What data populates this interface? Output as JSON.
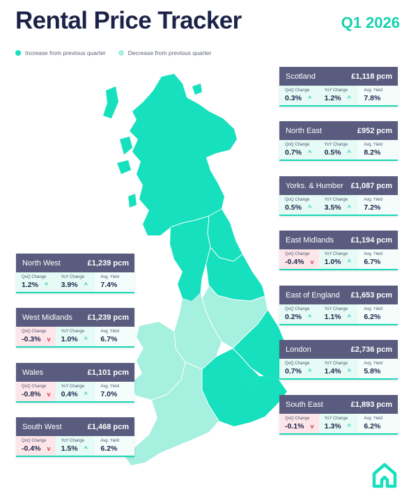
{
  "header": {
    "title": "Rental Price Tracker",
    "period": "Q1 2026"
  },
  "legend": {
    "increase": "Increase from previous quarter",
    "decrease": "Decrease from previous quarter"
  },
  "colors": {
    "increase": "#16e0bd",
    "decrease": "#a6f0e0",
    "title": "#1c2348",
    "card_header": "#595c7e",
    "down_arrow": "#e0394e"
  },
  "labels": {
    "qoq": "QoQ Change",
    "yoy": "YoY Change",
    "yield": "Avg. Yield"
  },
  "regions": {
    "scotland": {
      "name": "Scotland",
      "price": "£1,118 pcm",
      "qoq": "0.3%",
      "yoy": "1.2%",
      "yield": "7.8%",
      "qoq_dir": "up",
      "yoy_dir": "up"
    },
    "north_east": {
      "name": "North East",
      "price": "£952 pcm",
      "qoq": "0.7%",
      "yoy": "0.5%",
      "yield": "8.2%",
      "qoq_dir": "up",
      "yoy_dir": "up"
    },
    "yorks_humber": {
      "name": "Yorks. & Humber",
      "price": "£1,087 pcm",
      "qoq": "0.5%",
      "yoy": "3.5%",
      "yield": "7.2%",
      "qoq_dir": "up",
      "yoy_dir": "up"
    },
    "east_midlands": {
      "name": "East Midlands",
      "price": "£1,194 pcm",
      "qoq": "-0.4%",
      "yoy": "1.0%",
      "yield": "6.7%",
      "qoq_dir": "down",
      "yoy_dir": "up"
    },
    "east_of_england": {
      "name": "East of England",
      "price": "£1,653 pcm",
      "qoq": "0.2%",
      "yoy": "1.1%",
      "yield": "6.2%",
      "qoq_dir": "up",
      "yoy_dir": "up"
    },
    "london": {
      "name": "London",
      "price": "£2,736 pcm",
      "qoq": "0.7%",
      "yoy": "1.4%",
      "yield": "5.8%",
      "qoq_dir": "up",
      "yoy_dir": "up"
    },
    "south_east": {
      "name": "South East",
      "price": "£1,893 pcm",
      "qoq": "-0.1%",
      "yoy": "1.3%",
      "yield": "6.2%",
      "qoq_dir": "down",
      "yoy_dir": "up"
    },
    "north_west": {
      "name": "North West",
      "price": "£1,239 pcm",
      "qoq": "1.2%",
      "yoy": "3.9%",
      "yield": "7.4%",
      "qoq_dir": "up",
      "yoy_dir": "up"
    },
    "west_midlands": {
      "name": "West Midlands",
      "price": "£1,239 pcm",
      "qoq": "-0.3%",
      "yoy": "1.0%",
      "yield": "6.7%",
      "qoq_dir": "down",
      "yoy_dir": "up"
    },
    "wales": {
      "name": "Wales",
      "price": "£1,101 pcm",
      "qoq": "-0.8%",
      "yoy": "0.4%",
      "yield": "7.0%",
      "qoq_dir": "down",
      "yoy_dir": "up"
    },
    "south_west": {
      "name": "South West",
      "price": "£1,468 pcm",
      "qoq": "-0.4%",
      "yoy": "1.5%",
      "yield": "6.2%",
      "qoq_dir": "down",
      "yoy_dir": "up"
    }
  }
}
